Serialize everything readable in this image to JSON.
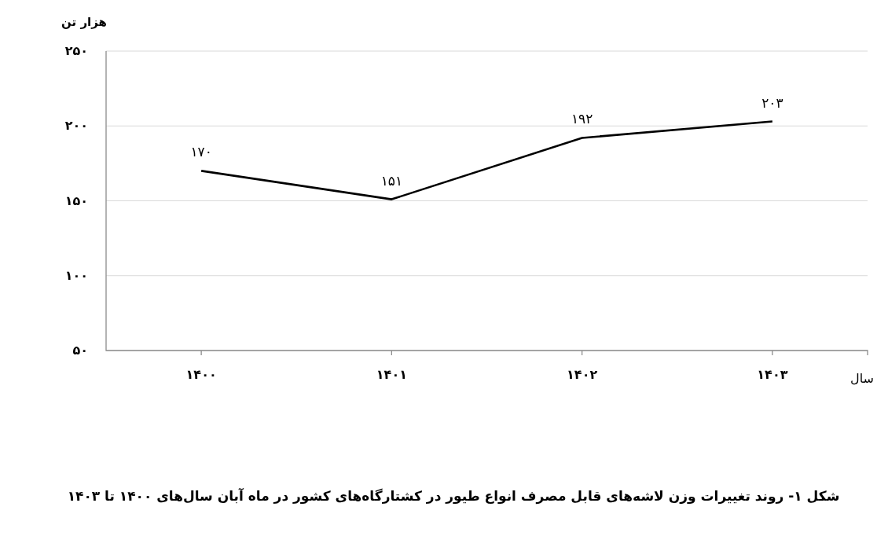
{
  "chart_data": {
    "type": "line",
    "title": "شکل ۱- روند تغییرات وزن لاشه‌های قابل مصرف انواع طیور در کشتارگاه‌های کشور در ماه آبان سال‌های ۱۴۰۰ تا ۱۴۰۳",
    "xlabel": "سال",
    "ylabel": "هزار تن",
    "categories": [
      "۱۴۰۰",
      "۱۴۰۱",
      "۱۴۰۲",
      "۱۴۰۳"
    ],
    "series": [
      {
        "color": "#000000",
        "values": [
          170,
          151,
          192,
          203
        ],
        "value_labels": [
          "۱۷۰",
          "۱۵۱",
          "۱۹۲",
          "۲۰۳"
        ]
      }
    ],
    "ylim": [
      50,
      250
    ],
    "yticks": [
      {
        "value": 50,
        "label": "۵۰"
      },
      {
        "value": 100,
        "label": "۱۰۰"
      },
      {
        "value": 150,
        "label": "۱۵۰"
      },
      {
        "value": 200,
        "label": "۲۰۰"
      },
      {
        "value": 250,
        "label": "۲۵۰"
      }
    ],
    "grid": "y",
    "marker": "none",
    "line_style": "solid"
  }
}
